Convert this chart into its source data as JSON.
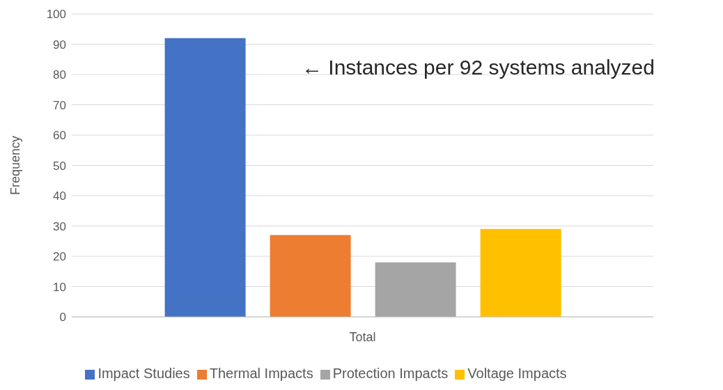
{
  "chart_data": {
    "type": "bar",
    "ylabel": "Frequency",
    "categories": [
      "Total"
    ],
    "series": [
      {
        "name": "Impact Studies",
        "color": "#4472c4",
        "values": [
          92
        ]
      },
      {
        "name": "Thermal Impacts",
        "color": "#ed7d31",
        "values": [
          27
        ]
      },
      {
        "name": "Protection Impacts",
        "color": "#a5a5a5",
        "values": [
          18
        ]
      },
      {
        "name": "Voltage Impacts",
        "color": "#ffc000",
        "values": [
          29
        ]
      }
    ],
    "ylim": [
      0,
      100
    ],
    "yticks": [
      0,
      10,
      20,
      30,
      40,
      50,
      60,
      70,
      80,
      90,
      100
    ],
    "grid": "y",
    "legend": "bottom",
    "annotations": [
      "← Instances per 92 systems analyzed"
    ]
  }
}
